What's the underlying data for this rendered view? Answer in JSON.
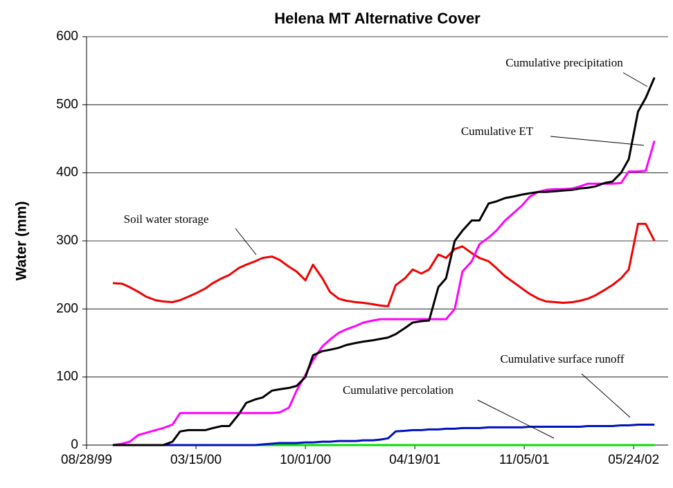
{
  "chart_data": {
    "type": "line",
    "title": "Helena MT Alternative Cover",
    "y_label": "Water (mm)",
    "ylim": [
      0,
      600
    ],
    "yticks": [
      0,
      100,
      200,
      300,
      400,
      500,
      600
    ],
    "grid": true,
    "xlim": [
      "1999-08-28",
      "2002-07-26"
    ],
    "xticks": [
      {
        "value": "1999-08-28",
        "label": "08/28/99"
      },
      {
        "value": "2000-03-15",
        "label": "03/15/00"
      },
      {
        "value": "2000-10-01",
        "label": "10/01/00"
      },
      {
        "value": "2001-04-19",
        "label": "04/19/01"
      },
      {
        "value": "2001-11-05",
        "label": "11/05/01"
      },
      {
        "value": "2002-05-24",
        "label": "05/24/02"
      }
    ],
    "x": [
      "1999-10-15",
      "1999-11-01",
      "1999-11-15",
      "1999-12-01",
      "1999-12-15",
      "2000-01-01",
      "2000-01-15",
      "2000-02-01",
      "2000-02-15",
      "2000-03-01",
      "2000-03-15",
      "2000-04-01",
      "2000-04-15",
      "2000-05-01",
      "2000-05-15",
      "2000-06-01",
      "2000-06-15",
      "2000-07-01",
      "2000-07-15",
      "2000-08-01",
      "2000-08-15",
      "2000-09-01",
      "2000-09-15",
      "2000-10-01",
      "2000-10-15",
      "2000-11-01",
      "2000-11-15",
      "2000-12-01",
      "2000-12-15",
      "2001-01-01",
      "2001-01-15",
      "2001-02-01",
      "2001-02-15",
      "2001-03-01",
      "2001-03-15",
      "2001-04-01",
      "2001-04-15",
      "2001-05-01",
      "2001-05-15",
      "2001-06-01",
      "2001-06-15",
      "2001-07-01",
      "2001-07-15",
      "2001-08-01",
      "2001-08-15",
      "2001-09-01",
      "2001-09-15",
      "2001-10-01",
      "2001-10-15",
      "2001-11-01",
      "2001-11-15",
      "2001-12-01",
      "2001-12-15",
      "2002-01-01",
      "2002-01-15",
      "2002-02-01",
      "2002-02-15",
      "2002-03-01",
      "2002-03-15",
      "2002-04-01",
      "2002-04-15",
      "2002-05-01",
      "2002-05-15",
      "2002-06-01",
      "2002-06-15",
      "2002-07-01"
    ],
    "series": [
      {
        "name": "Cumulative percolation",
        "color": "#00e000",
        "values": [
          0,
          0,
          0,
          0,
          0,
          0,
          0,
          0,
          0,
          0,
          0,
          0,
          0,
          0,
          0,
          0,
          0,
          0,
          0,
          0,
          0,
          0,
          0,
          0,
          0,
          0,
          0,
          0,
          0,
          0,
          0,
          0,
          0,
          0,
          0,
          0,
          0,
          0,
          0,
          0,
          0,
          0,
          0,
          0,
          0,
          0,
          0,
          0,
          0,
          0,
          0,
          0,
          0,
          0,
          0,
          0,
          0,
          0,
          0,
          0,
          0,
          0,
          0,
          0,
          0,
          0
        ]
      },
      {
        "name": "Cumulative surface runoff",
        "color": "#0010c0",
        "values": [
          0,
          0,
          0,
          0,
          0,
          0,
          0,
          0,
          0,
          0,
          0,
          0,
          0,
          0,
          0,
          0,
          0,
          0,
          1,
          2,
          3,
          3,
          3,
          4,
          4,
          5,
          5,
          6,
          6,
          6,
          7,
          7,
          8,
          10,
          20,
          21,
          22,
          22,
          23,
          23,
          24,
          24,
          25,
          25,
          25,
          26,
          26,
          26,
          26,
          26,
          27,
          27,
          27,
          27,
          27,
          27,
          27,
          28,
          28,
          28,
          28,
          29,
          29,
          30,
          30,
          30
        ]
      },
      {
        "name": "Soil water storage",
        "color": "#f00000",
        "values": [
          238,
          237,
          232,
          225,
          218,
          213,
          211,
          210,
          213,
          218,
          223,
          230,
          238,
          245,
          250,
          260,
          265,
          270,
          275,
          277,
          272,
          262,
          255,
          242,
          265,
          245,
          225,
          215,
          212,
          210,
          209,
          207,
          205,
          204,
          235,
          245,
          258,
          252,
          258,
          280,
          275,
          288,
          292,
          282,
          275,
          270,
          260,
          248,
          240,
          230,
          222,
          215,
          211,
          210,
          209,
          210,
          212,
          215,
          220,
          228,
          235,
          245,
          258,
          325,
          325,
          300
        ]
      },
      {
        "name": "Cumulative ET",
        "color": "#ff00ff",
        "values": [
          0,
          2,
          5,
          15,
          18,
          22,
          25,
          30,
          47,
          47,
          47,
          47,
          47,
          47,
          47,
          47,
          47,
          47,
          47,
          47,
          48,
          55,
          80,
          103,
          125,
          145,
          155,
          165,
          170,
          175,
          180,
          183,
          185,
          185,
          185,
          185,
          185,
          185,
          185,
          185,
          185,
          200,
          255,
          270,
          295,
          305,
          315,
          330,
          340,
          352,
          365,
          372,
          375,
          376,
          376,
          377,
          380,
          384,
          384,
          384,
          384,
          385,
          402,
          402,
          403,
          447
        ]
      },
      {
        "name": "Cumulative precipitation",
        "color": "#000000",
        "values": [
          0,
          0,
          0,
          0,
          0,
          0,
          0,
          5,
          20,
          22,
          22,
          22,
          25,
          28,
          28,
          45,
          62,
          67,
          70,
          80,
          82,
          84,
          87,
          100,
          132,
          138,
          140,
          143,
          147,
          150,
          152,
          154,
          156,
          158,
          163,
          172,
          180,
          182,
          183,
          232,
          245,
          300,
          315,
          330,
          330,
          355,
          358,
          363,
          365,
          368,
          370,
          372,
          372,
          373,
          374,
          375,
          377,
          378,
          380,
          385,
          387,
          400,
          420,
          490,
          510,
          540
        ]
      }
    ]
  }
}
